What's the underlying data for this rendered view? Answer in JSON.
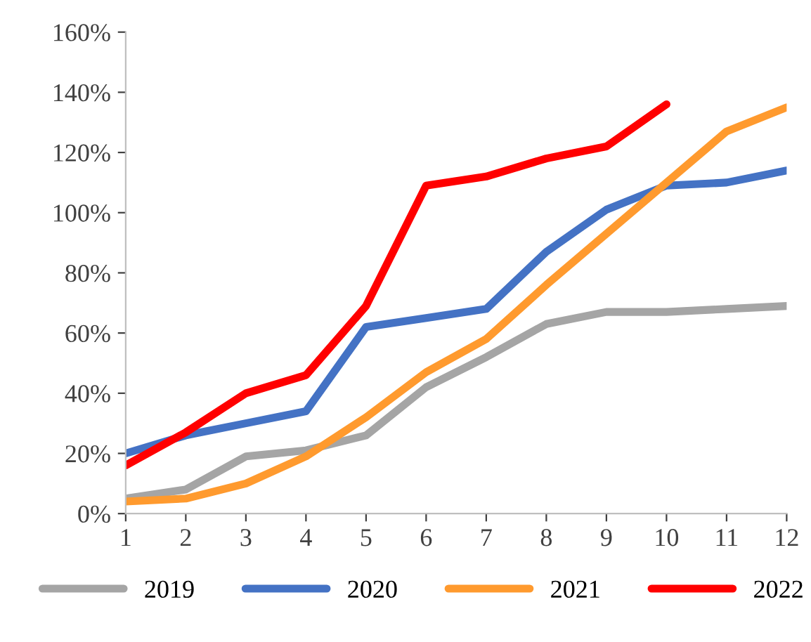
{
  "chart_data": {
    "type": "line",
    "x": [
      1,
      2,
      3,
      4,
      5,
      6,
      7,
      8,
      9,
      10,
      11,
      12
    ],
    "series": [
      {
        "name": "2019",
        "color": "#a5a5a5",
        "values": [
          5,
          8,
          19,
          21,
          26,
          42,
          52,
          63,
          67,
          67,
          68,
          69
        ]
      },
      {
        "name": "2020",
        "color": "#4472c4",
        "values": [
          20,
          26,
          30,
          34,
          62,
          65,
          68,
          87,
          101,
          109,
          110,
          114
        ]
      },
      {
        "name": "2021",
        "color": "#ff9a2e",
        "values": [
          4,
          5,
          10,
          19,
          32,
          47,
          58,
          76,
          93,
          110,
          127,
          135
        ]
      },
      {
        "name": "2022",
        "color": "#ff0000",
        "values": [
          16,
          27,
          40,
          46,
          69,
          109,
          112,
          118,
          122,
          136,
          null,
          null
        ]
      }
    ],
    "xlim": [
      1,
      12
    ],
    "xticks": [
      1,
      2,
      3,
      4,
      5,
      6,
      7,
      8,
      9,
      10,
      11,
      12
    ],
    "ylim": [
      0,
      160
    ],
    "yticks": [
      {
        "value": 0,
        "label": "0%"
      },
      {
        "value": 20,
        "label": "20%"
      },
      {
        "value": 40,
        "label": "40%"
      },
      {
        "value": 60,
        "label": "60%"
      },
      {
        "value": 80,
        "label": "80%"
      },
      {
        "value": 100,
        "label": "100%"
      },
      {
        "value": 120,
        "label": "120%"
      },
      {
        "value": 140,
        "label": "140%"
      },
      {
        "value": 160,
        "label": "160%"
      }
    ],
    "grid": false,
    "legend": "bottom",
    "marker": "none",
    "line_style": "solid"
  }
}
